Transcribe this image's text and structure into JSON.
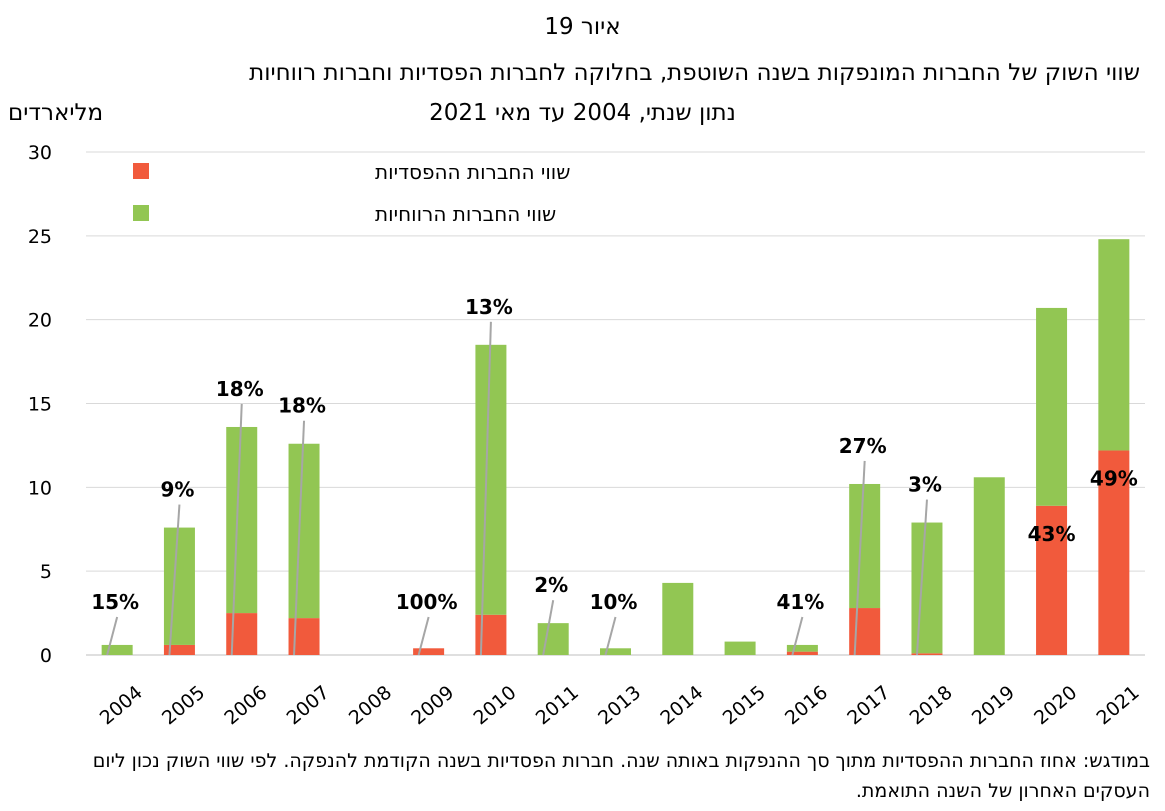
{
  "figure_label": "איור 19",
  "title": "שווי השוק של החברות המונפקות בשנה השוטפת, בחלוקה לחברות הפסדיות וחברות רווחיות",
  "subtitle": "נתון שנתי, 2004 עד מאי 2021",
  "unit_label": "מליארדים",
  "note": "במודגש: אחוז החברות ההפסדיות מתוך סך ההנפקות באותה שנה. חברות הפסדיות בשנה הקודמת להנפקה. לפי שווי השוק נכון ליום העסקים האחרון של השנה התואמת.",
  "colors": {
    "loss": "#f15a3c",
    "profit": "#92c653",
    "grid": "#d9d9d9"
  },
  "chart_data": {
    "type": "bar",
    "stacked": true,
    "categories": [
      "2004",
      "2005",
      "2006",
      "2007",
      "2008",
      "2009",
      "2010",
      "2011",
      "2013",
      "2014",
      "2015",
      "2016",
      "2017",
      "2018",
      "2019",
      "2020",
      "2021"
    ],
    "series": [
      {
        "name": "שווי החברות ההפסדיות",
        "color": "#f15a3c",
        "values": [
          0,
          0.6,
          2.5,
          2.2,
          0,
          0.4,
          2.4,
          0,
          0,
          0,
          0,
          0.2,
          2.8,
          0.1,
          0,
          8.9,
          12.2
        ]
      },
      {
        "name": "שווי החברות הרווחיות",
        "color": "#92c653",
        "values": [
          0.6,
          7.0,
          11.1,
          10.4,
          0,
          0,
          16.1,
          1.9,
          0.4,
          4.3,
          0.8,
          0.4,
          7.4,
          7.8,
          10.6,
          11.8,
          12.6
        ]
      }
    ],
    "annotations": [
      "15%",
      "9%",
      "18%",
      "18%",
      "",
      "100%",
      "13%",
      "2%",
      "10%",
      "",
      "",
      "41%",
      "27%",
      "3%",
      "",
      "43%",
      "49%"
    ],
    "ylim": [
      0,
      30
    ],
    "yticks": [
      0,
      5,
      10,
      15,
      20,
      25,
      30
    ],
    "grid": true,
    "legend_position": "top-left"
  }
}
